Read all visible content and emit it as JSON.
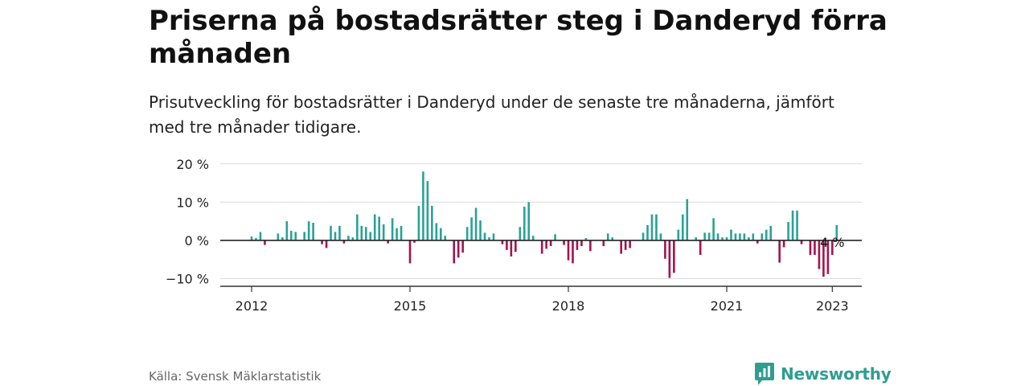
{
  "header": {
    "title": "Priserna på bostadsrätter steg i Danderyd förra månaden",
    "subtitle": "Prisutveckling för bostadsrätter i Danderyd under de senaste tre månaderna, jämfört med tre månader tidigare."
  },
  "footer": {
    "source": "Källa: Svensk Mäklarstatistik",
    "brand": "Newsworthy",
    "brand_icon": "bar-chart-icon"
  },
  "colors": {
    "positive": "#2aa198",
    "negative": "#a3134e",
    "axis": "#333333",
    "grid": "#dcdcdc",
    "brand": "#2e9e91"
  },
  "chart_data": {
    "type": "bar",
    "x_start": "2012-01",
    "x_step": "month",
    "ylim": [
      -12,
      21
    ],
    "yticks": [
      -10,
      0,
      10,
      20
    ],
    "ytick_labels": [
      "−10 %",
      "0 %",
      "10 %",
      "20 %"
    ],
    "xticks": [
      "2012-01",
      "2015-01",
      "2018-01",
      "2021-01",
      "2023-01"
    ],
    "xtick_labels": [
      "2012",
      "2015",
      "2018",
      "2021",
      "2023"
    ],
    "grid": true,
    "annotation": {
      "x": "2023-01",
      "text": "4 %"
    },
    "values": [
      1,
      0.6,
      2.2,
      -1.2,
      0,
      0,
      1.8,
      0.8,
      5,
      2.5,
      2.2,
      0,
      2.2,
      5,
      4.6,
      0,
      -1,
      -2,
      3.8,
      2.2,
      3.8,
      -0.8,
      1.2,
      0.8,
      6.8,
      3.8,
      3.5,
      2.2,
      6.8,
      6.2,
      4.2,
      -0.8,
      5.8,
      3.2,
      3.8,
      0,
      -6,
      -0.6,
      9,
      18,
      15.5,
      9,
      4.5,
      3.2,
      1.2,
      0,
      -6,
      -4.5,
      -3.2,
      3.5,
      6,
      8.5,
      5.2,
      2,
      0.8,
      1.8,
      0,
      -1,
      -2.5,
      -4.2,
      -3,
      3.5,
      8.8,
      10,
      1.2,
      0,
      -3.5,
      -2.2,
      -1.5,
      1.6,
      0,
      -1.2,
      -5.2,
      -6,
      -2.5,
      -1.5,
      0.6,
      -2.8,
      0,
      0,
      -1.5,
      1.8,
      0.8,
      0,
      -3.5,
      -2.5,
      -2,
      0,
      0,
      2,
      4,
      6.8,
      6.8,
      1.8,
      -4.8,
      -9.8,
      -8.5,
      2.8,
      6.8,
      10.8,
      0,
      0.8,
      -3.8,
      2,
      2,
      5.8,
      1.8,
      0.8,
      0.8,
      2.8,
      1.8,
      1.8,
      1.8,
      0.8,
      1.8,
      -0.8,
      1.8,
      2.8,
      3.8,
      0,
      -5.8,
      -1.8,
      4.8,
      7.8,
      7.8,
      -1,
      0,
      -3.8,
      -3.8,
      -7.5,
      -9.5,
      -8.8,
      -3.8,
      4
    ]
  }
}
